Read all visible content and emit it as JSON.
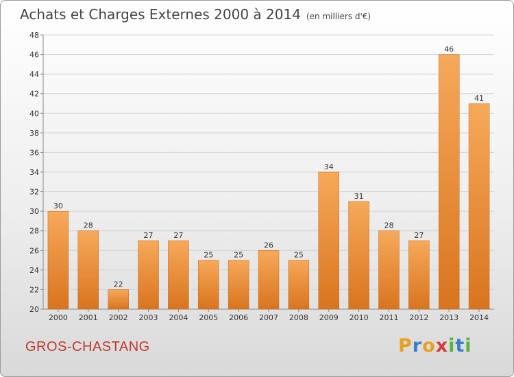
{
  "header": {
    "title": "Achats et Charges Externes 2000 à 2014",
    "subtitle": "(en milliers d'€)"
  },
  "footer": {
    "commune": "GROS-CHASTANG",
    "logo_text": "Proxiti",
    "logo_colors": [
      "#e8a020",
      "#3a7ec8",
      "#e8a020",
      "#d93a3a",
      "#57b43a",
      "#3a7ec8",
      "#57b43a"
    ]
  },
  "colors": {
    "bar_light": "#f6a95a",
    "bar_dark": "#d9741e",
    "commune": "#c0392b",
    "axis": "#888888"
  },
  "chart_data": {
    "type": "bar",
    "title": "Achats et Charges Externes 2000 à 2014",
    "subtitle": "(en milliers d'€)",
    "categories": [
      "2000",
      "2001",
      "2002",
      "2003",
      "2004",
      "2005",
      "2006",
      "2007",
      "2008",
      "2009",
      "2010",
      "2011",
      "2012",
      "2013",
      "2014"
    ],
    "values": [
      30,
      28,
      22,
      27,
      27,
      25,
      25,
      26,
      25,
      34,
      31,
      28,
      27,
      46,
      41
    ],
    "ylim": [
      20,
      48
    ],
    "yticks": [
      20,
      22,
      24,
      26,
      28,
      30,
      32,
      34,
      36,
      38,
      40,
      42,
      44,
      46,
      48
    ],
    "grid": true,
    "xlabel": "",
    "ylabel": ""
  }
}
